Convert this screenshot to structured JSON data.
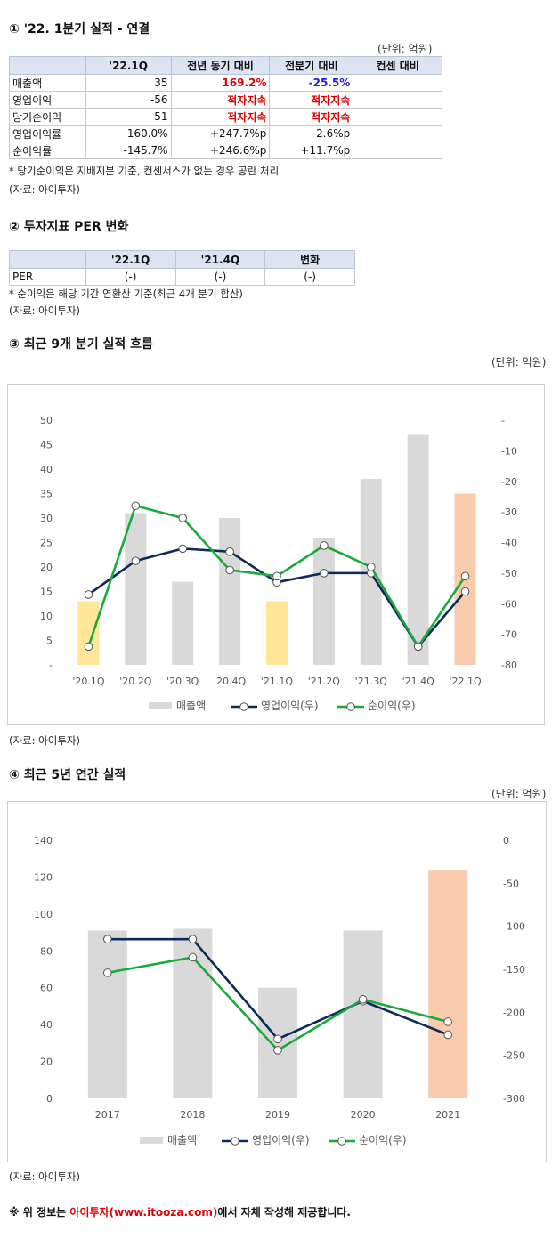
{
  "section1": {
    "title": "① '22. 1분기 실적 - 연결",
    "unit": "(단위: 억원)",
    "headers": [
      "",
      "'22.1Q",
      "전년 동기 대비",
      "전분기 대비",
      "컨센 대비"
    ],
    "rows": [
      [
        "매출액",
        "35",
        "169.2%",
        "-25.5%",
        ""
      ],
      [
        "영업이익",
        "-56",
        "적자지속",
        "적자지속",
        ""
      ],
      [
        "당기순이익",
        "-51",
        "적자지속",
        "적자지속",
        ""
      ],
      [
        "영업이익률",
        "-160.0%",
        "+247.7%p",
        "-2.6%p",
        ""
      ],
      [
        "순이익률",
        "-145.7%",
        "+246.6%p",
        "+11.7%p",
        ""
      ]
    ],
    "note": "* 당기순이익은 지배지분 기준, 컨센서스가 없는 경우 공란 처리",
    "source": "(자료: 아이투자)"
  },
  "section2": {
    "title": "② 투자지표 PER 변화",
    "headers": [
      "",
      "'22.1Q",
      "'21.4Q",
      "변화"
    ],
    "rows": [
      [
        "PER",
        "(-)",
        "(-)",
        "(-)"
      ]
    ],
    "note": "* 순이익은 해당 기간 연환산 기준(최근 4개 분기 합산)",
    "source": "(자료: 아이투자)"
  },
  "section3": {
    "title": "③ 최근 9개 분기 실적 흐름",
    "unit": "(단위: 억원)",
    "source": "(자료: 아이투자)"
  },
  "section4": {
    "title": "④ 최근 5년 연간 실적",
    "unit": "(단위: 억원)",
    "source": "(자료: 아이투자)"
  },
  "footer": {
    "prefix": "※ 위 정보는 ",
    "highlight": "아이투자(www.itooza.com)",
    "suffix": "에서 자체 작성해 제공합니다."
  },
  "colors": {
    "bar_gray": "#d9d9d9",
    "bar_yellow": "#ffe699",
    "bar_orange": "#f8cbad",
    "op_line": "#0d2a5a",
    "net_line": "#1aaa3c"
  },
  "chart_data": [
    {
      "type": "bar",
      "combo": "bar+line, dual axis",
      "categories": [
        "'20.1Q",
        "'20.2Q",
        "'20.3Q",
        "'20.4Q",
        "'21.1Q",
        "'21.2Q",
        "'21.3Q",
        "'21.4Q",
        "'22.1Q"
      ],
      "bar_colors": [
        "yellow",
        "gray",
        "gray",
        "gray",
        "yellow",
        "gray",
        "gray",
        "gray",
        "orange"
      ],
      "series": [
        {
          "name": "매출액",
          "axis": "left",
          "kind": "bar",
          "values": [
            13,
            31,
            17,
            30,
            13,
            26,
            38,
            47,
            35
          ]
        },
        {
          "name": "영업이익(우)",
          "axis": "right",
          "kind": "line",
          "values": [
            -57,
            -46,
            -42,
            -43,
            -53,
            -50,
            -50,
            -74,
            -56
          ]
        },
        {
          "name": "순이익(우)",
          "axis": "right",
          "kind": "line",
          "values": [
            -74,
            -28,
            -32,
            -49,
            -51,
            -41,
            -48,
            -74,
            -51
          ]
        }
      ],
      "left_axis": {
        "min": 0,
        "max": 50,
        "ticks": [
          "-",
          "5",
          "10",
          "15",
          "20",
          "25",
          "30",
          "35",
          "40",
          "45",
          "50"
        ]
      },
      "right_axis": {
        "min": -80,
        "max": 0,
        "ticks": [
          "-80",
          "-70",
          "-60",
          "-50",
          "-40",
          "-30",
          "-20",
          "-10",
          "-"
        ]
      },
      "legend": [
        "매출액",
        "영업이익(우)",
        "순이익(우)"
      ],
      "legend_position": "bottom"
    },
    {
      "type": "bar",
      "combo": "bar+line, dual axis",
      "categories": [
        "2017",
        "2018",
        "2019",
        "2020",
        "2021"
      ],
      "bar_colors": [
        "gray",
        "gray",
        "gray",
        "gray",
        "orange"
      ],
      "series": [
        {
          "name": "매출액",
          "axis": "left",
          "kind": "bar",
          "values": [
            91,
            92,
            60,
            91,
            124
          ]
        },
        {
          "name": "영업이익(우)",
          "axis": "right",
          "kind": "line",
          "values": [
            -115,
            -115,
            -231,
            -187,
            -226
          ]
        },
        {
          "name": "순이익(우)",
          "axis": "right",
          "kind": "line",
          "values": [
            -154,
            -136,
            -244,
            -185,
            -211
          ]
        }
      ],
      "left_axis": {
        "min": 0,
        "max": 140,
        "ticks": [
          "0",
          "20",
          "40",
          "60",
          "80",
          "100",
          "120",
          "140"
        ]
      },
      "right_axis": {
        "min": -300,
        "max": 0,
        "ticks": [
          "-300",
          "-250",
          "-200",
          "-150",
          "-100",
          "-50",
          "0"
        ]
      },
      "legend": [
        "매출액",
        "영업이익(우)",
        "순이익(우)"
      ],
      "legend_position": "bottom"
    }
  ]
}
